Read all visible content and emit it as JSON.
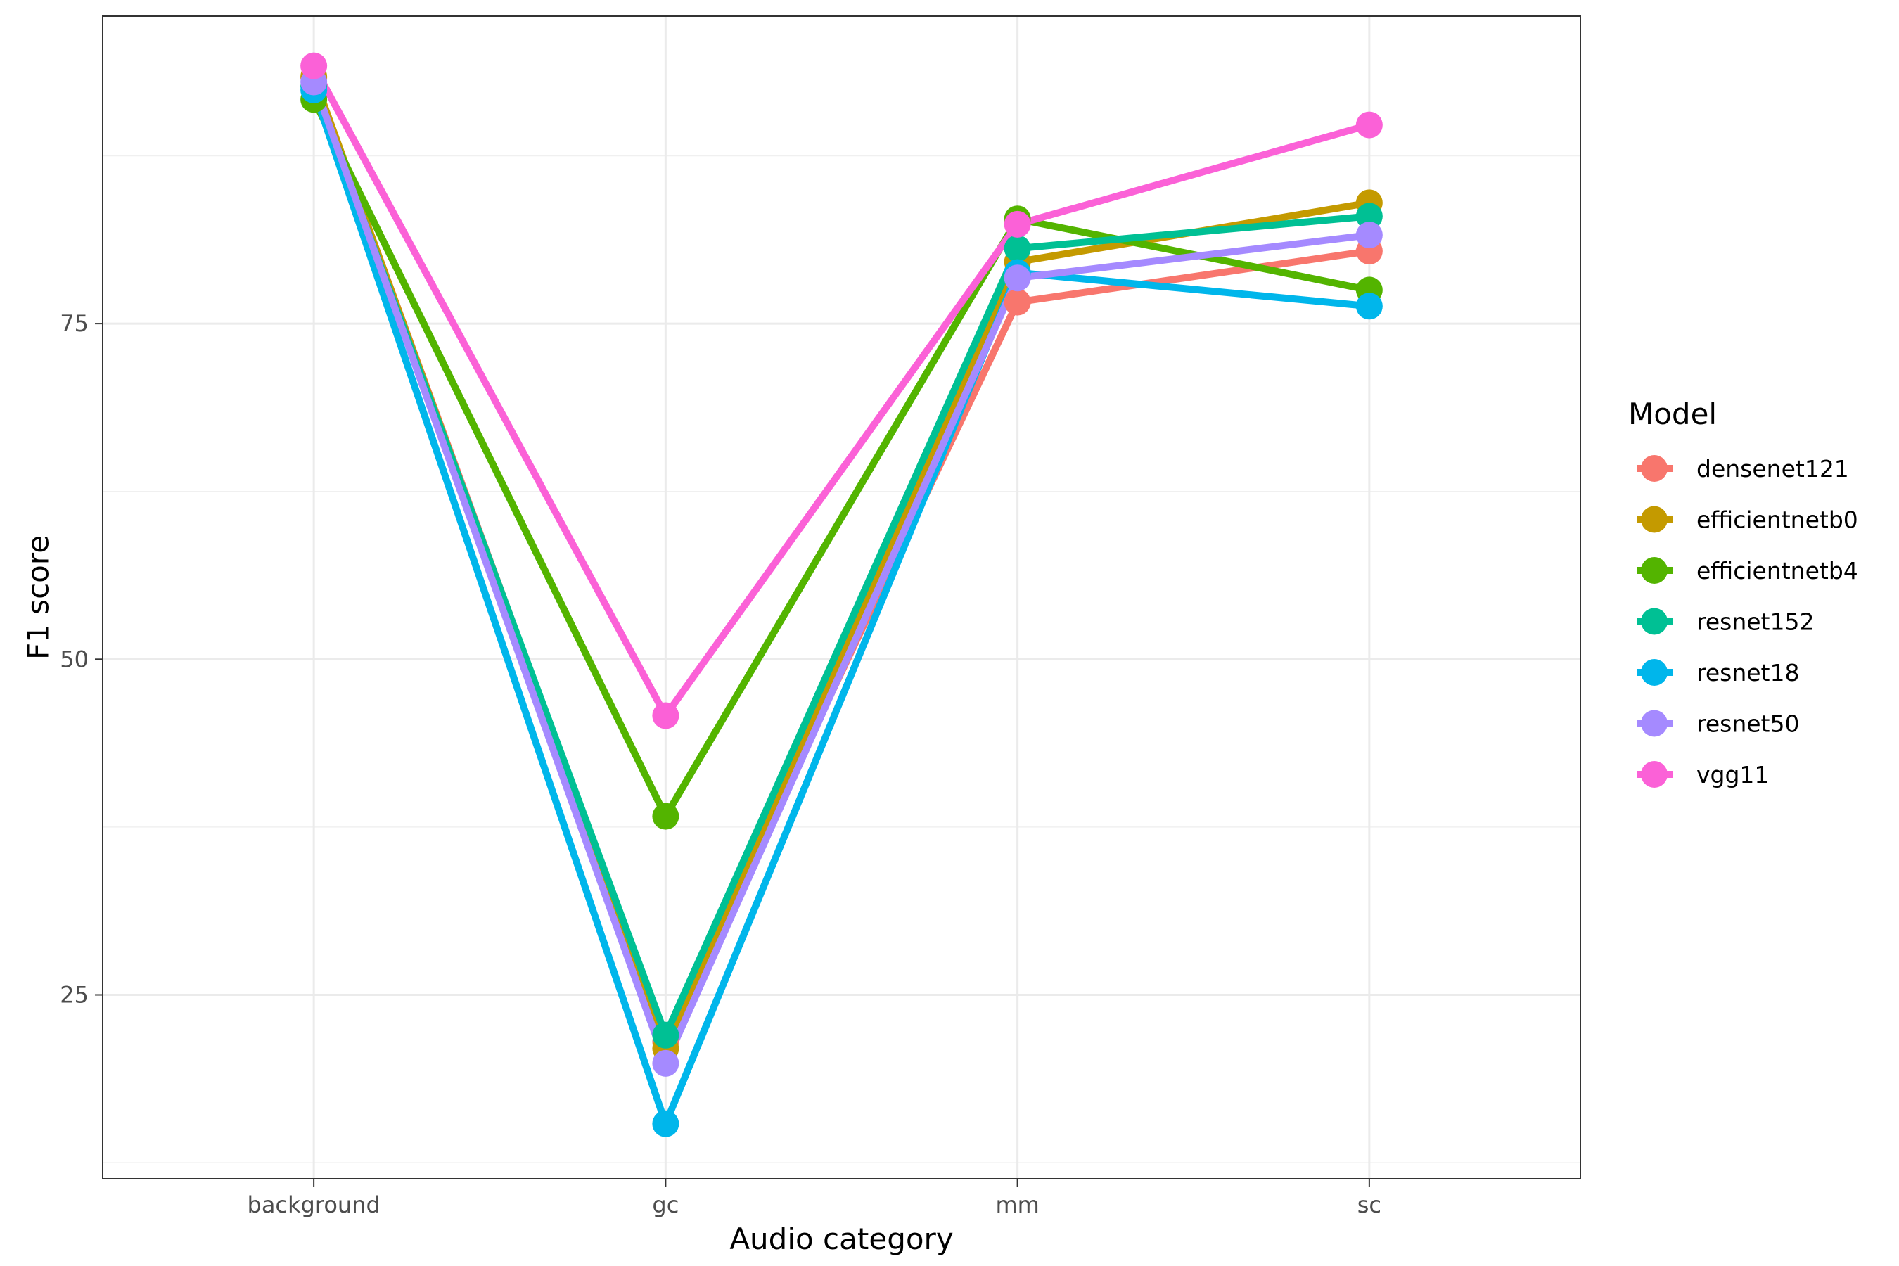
{
  "chart_data": {
    "type": "line",
    "title": "",
    "xlabel": "Audio category",
    "ylabel": "F1 score",
    "categories": [
      "background",
      "gc",
      "mm",
      "sc"
    ],
    "ylim": [
      11.3,
      97.9
    ],
    "y_major_ticks": [
      25,
      50,
      75
    ],
    "y_minor_ticks": [
      12.5,
      37.5,
      62.5,
      87.5
    ],
    "grid": true,
    "legend": {
      "title": "Model",
      "position": "right"
    },
    "series": [
      {
        "name": "densenet121",
        "color": "#F8766D",
        "values": [
          93.3,
          21.5,
          76.6,
          80.4
        ]
      },
      {
        "name": "efficientnetb0",
        "color": "#C49A00",
        "values": [
          93.4,
          21.0,
          79.6,
          84.0
        ]
      },
      {
        "name": "efficientnetb4",
        "color": "#53B400",
        "values": [
          91.7,
          38.3,
          82.8,
          77.5
        ]
      },
      {
        "name": "resnet152",
        "color": "#00C094",
        "values": [
          92.7,
          22.0,
          80.6,
          83.0
        ]
      },
      {
        "name": "resnet18",
        "color": "#00B6EB",
        "values": [
          92.4,
          15.4,
          78.8,
          76.3
        ]
      },
      {
        "name": "resnet50",
        "color": "#A58AFF",
        "values": [
          93.0,
          19.9,
          78.4,
          81.6
        ]
      },
      {
        "name": "vgg11",
        "color": "#FB61D7",
        "values": [
          94.2,
          45.8,
          82.4,
          89.8
        ]
      }
    ]
  }
}
